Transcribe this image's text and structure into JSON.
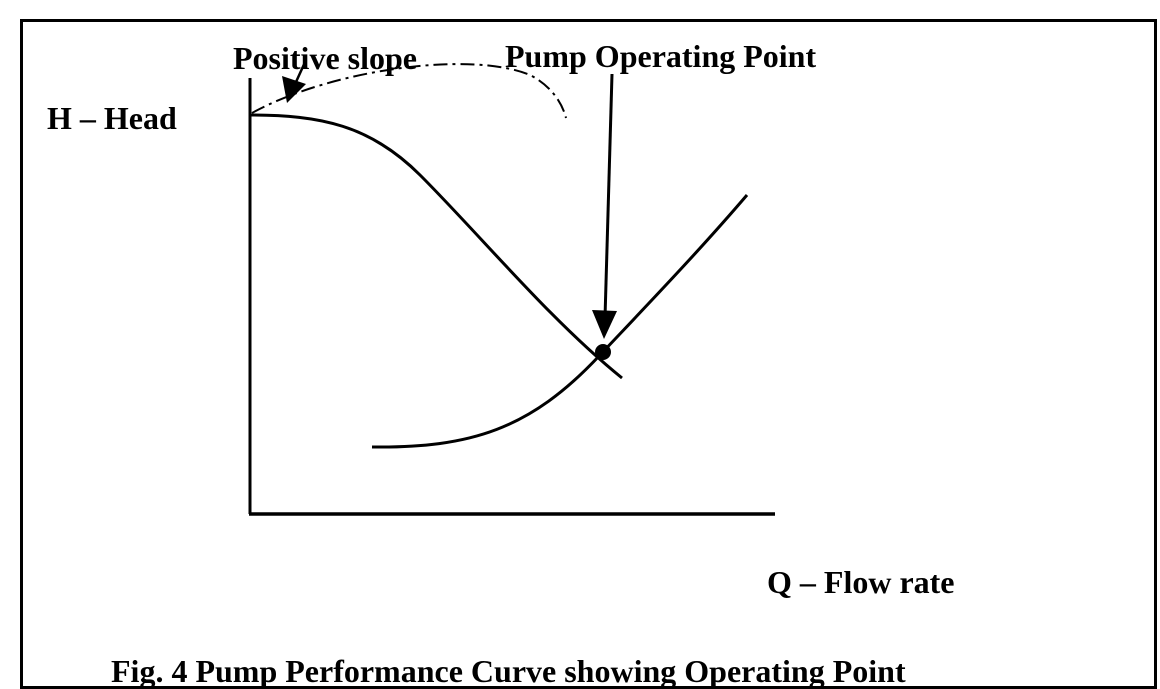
{
  "labels": {
    "y_axis": "H – Head",
    "x_axis": "Q – Flow rate",
    "positive_slope": "Positive slope",
    "operating_point": "Pump Operating Point",
    "caption": "Fig. 4 Pump Performance Curve showing Operating Point"
  },
  "colors": {
    "line": "#000000",
    "background": "#ffffff"
  }
}
